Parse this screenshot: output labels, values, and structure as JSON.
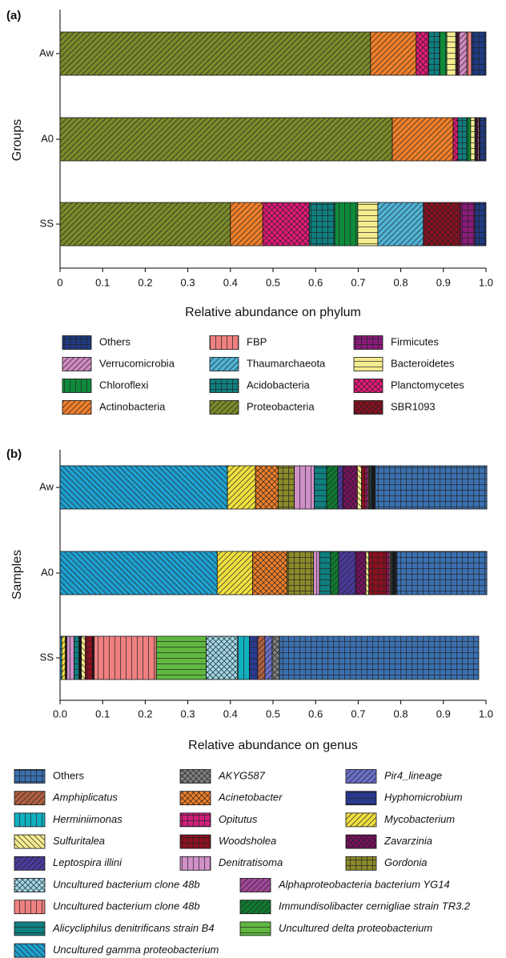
{
  "chart_data": [
    {
      "type": "bar",
      "orientation": "horizontal",
      "stacked": true,
      "label": "(a)",
      "xlabel": "Relative abundance on phylum",
      "ylabel": "Groups",
      "categories": [
        "Aw",
        "A0",
        "SS"
      ],
      "xlim": [
        0,
        1
      ],
      "xticks": [
        0,
        0.1,
        0.2,
        0.3,
        0.4,
        0.5,
        0.6,
        0.7,
        0.8,
        0.9,
        {
          "value": 1,
          "label": "1.0"
        }
      ],
      "series": [
        {
          "name": "Proteobacteria",
          "color": "#7a8a2a",
          "values": [
            0.729,
            0.78,
            0.4
          ]
        },
        {
          "name": "Actinobacteria",
          "color": "#f07f2a",
          "values": [
            0.107,
            0.143,
            0.076
          ]
        },
        {
          "name": "Planctomycetes",
          "color": "#e8197a",
          "values": [
            0.029,
            0.011,
            0.109
          ]
        },
        {
          "name": "Acidobacteria",
          "color": "#0f7f80",
          "values": [
            0.026,
            0.021,
            0.06
          ]
        },
        {
          "name": "Chloroflexi",
          "color": "#0f8a3a",
          "values": [
            0.017,
            0.009,
            0.054
          ]
        },
        {
          "name": "Bacteroidetes",
          "color": "#f5ec8f",
          "values": [
            0.021,
            0.01,
            0.047
          ]
        },
        {
          "name": "Thaumarchaeota",
          "color": "#4fb3d6",
          "values": [
            0.002,
            0.002,
            0.107
          ]
        },
        {
          "name": "SBR1093",
          "color": "#8b1020",
          "values": [
            0.003,
            0.002,
            0.087
          ]
        },
        {
          "name": "Firmicutes",
          "color": "#8a1a7a",
          "values": [
            0.003,
            0.003,
            0.034
          ]
        },
        {
          "name": "Verrucomicrobia",
          "color": "#d08ac0",
          "values": [
            0.018,
            0.003,
            0.0
          ]
        },
        {
          "name": "FBP",
          "color": "#f08080",
          "values": [
            0.011,
            0.002,
            0.0
          ]
        },
        {
          "name": "Others",
          "color": "#1f3a80",
          "values": [
            0.034,
            0.014,
            0.026
          ]
        }
      ]
    },
    {
      "type": "bar",
      "orientation": "horizontal",
      "stacked": true,
      "label": "(b)",
      "xlabel": "Relative abundance on genus",
      "ylabel": "Samples",
      "categories": [
        "Aw",
        "A0",
        "SS"
      ],
      "xlim": [
        0,
        1
      ],
      "xticks": [
        {
          "value": 0,
          "label": "0.0"
        },
        0.1,
        0.2,
        0.3,
        0.4,
        0.5,
        0.6,
        0.7,
        0.8,
        0.9,
        {
          "value": 1,
          "label": "1.0"
        }
      ],
      "series": [
        {
          "name": "Uncultured gamma proteobacterium",
          "color": "#1ea0d0",
          "values": [
            0.393,
            0.369,
            0.004
          ]
        },
        {
          "name": "Mycobacterium",
          "color": "#f0e040",
          "values": [
            0.066,
            0.083,
            0.008
          ]
        },
        {
          "name": "Acinetobacter",
          "color": "#f07f2a",
          "values": [
            0.053,
            0.081,
            0.002
          ]
        },
        {
          "name": "Gordonia",
          "color": "#8a8a2a",
          "values": [
            0.038,
            0.062,
            0.002
          ]
        },
        {
          "name": "Denitratisoma",
          "color": "#d090c8",
          "values": [
            0.047,
            0.014,
            0.017
          ]
        },
        {
          "name": "Alicycliphilus denitrificans strain B4",
          "color": "#0f7f80",
          "values": [
            0.029,
            0.026,
            0.011
          ]
        },
        {
          "name": "Immundisolibacter cernigliae strain TR3.2",
          "color": "#107a30",
          "values": [
            0.026,
            0.019,
            0.002
          ]
        },
        {
          "name": "Leptospira illini",
          "color": "#4a3a9a",
          "values": [
            0.012,
            0.04,
            0.002
          ]
        },
        {
          "name": "Zavarzinia",
          "color": "#7a1060",
          "values": [
            0.034,
            0.024,
            0.002
          ]
        },
        {
          "name": "Sulfuritalea",
          "color": "#f5ec8f",
          "values": [
            0.01,
            0.007,
            0.009
          ]
        },
        {
          "name": "Woodsholea",
          "color": "#8b1020",
          "values": [
            0.008,
            0.042,
            0.017
          ]
        },
        {
          "name": "Opitutus",
          "color": "#d0207a",
          "values": [
            0.004,
            0.004,
            0.002
          ]
        },
        {
          "name": "Alphaproteobacteria bacterium YG14",
          "color": "#a04898",
          "values": [
            0.004,
            0.004,
            0.002
          ]
        },
        {
          "name": "Uncultured bacterium clone 48b",
          "color": "#f08080",
          "values": [
            0.002,
            0.002,
            0.146
          ]
        },
        {
          "name": "Uncultured delta proteobacterium",
          "color": "#60b840",
          "values": [
            0.002,
            0.002,
            0.117
          ]
        },
        {
          "name": "Uncultured bacterium clone 48b",
          "color": "#a0d8e8",
          "values": [
            0.002,
            0.002,
            0.074
          ]
        },
        {
          "name": "Herminiimonas",
          "color": "#10b0c0",
          "values": [
            0.002,
            0.002,
            0.028
          ]
        },
        {
          "name": "Hyphomicrobium",
          "color": "#2a3a90",
          "values": [
            0.002,
            0.002,
            0.019
          ]
        },
        {
          "name": "Amphiplicatus",
          "color": "#b06040",
          "values": [
            0.002,
            0.002,
            0.017
          ]
        },
        {
          "name": "Pir4_lineage",
          "color": "#6a70c8",
          "values": [
            0.002,
            0.002,
            0.017
          ]
        },
        {
          "name": "AKYG587",
          "color": "#808080",
          "values": [
            0.002,
            0.002,
            0.017
          ]
        },
        {
          "name": "Others",
          "color": "#3a70b0",
          "values": [
            0.262,
            0.211,
            0.468
          ]
        }
      ]
    }
  ]
}
